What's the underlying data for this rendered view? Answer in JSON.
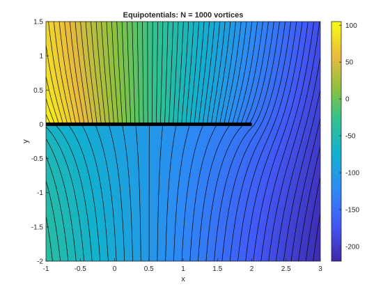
{
  "chart_data": {
    "type": "contour",
    "title": "Equipotentials: N = 1000 vortices",
    "xlabel": "x",
    "ylabel": "y",
    "xlim": [
      -1,
      3
    ],
    "ylim": [
      -2,
      1.5
    ],
    "x_ticks": [
      "-1",
      "-0.5",
      "0",
      "0.5",
      "1",
      "1.5",
      "2",
      "2.5",
      "3"
    ],
    "y_ticks": [
      "1.5",
      "1",
      "0.5",
      "0",
      "-0.5",
      "-1",
      "-1.5",
      "-2"
    ],
    "colorbar": {
      "range": [
        -220,
        105
      ],
      "ticks": [
        "100",
        "50",
        "0",
        "-50",
        "-100",
        "-150",
        "-200"
      ],
      "colormap": "parula"
    },
    "vortex_sheet": {
      "x_start": -1,
      "x_end": 2,
      "y": 0
    },
    "contour_levels": {
      "min": -215,
      "max": 100,
      "step": 5
    },
    "grid": false,
    "legend": "none"
  }
}
